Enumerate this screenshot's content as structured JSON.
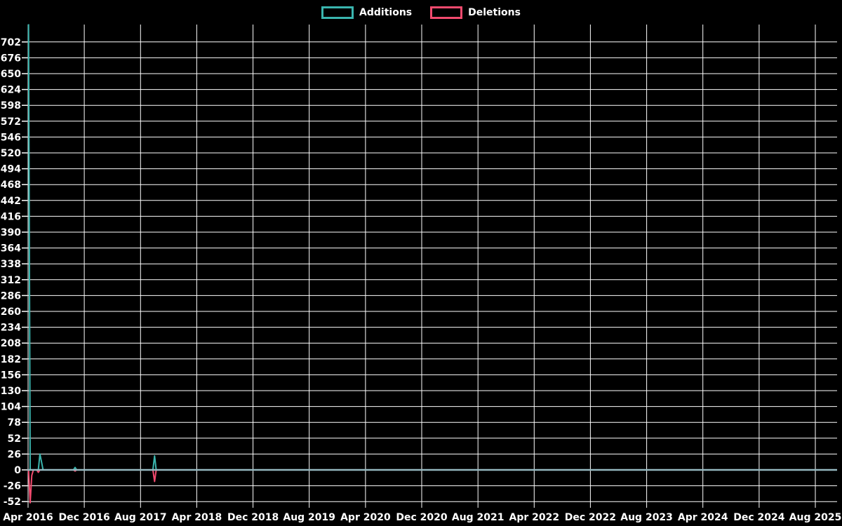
{
  "page": {
    "background": "#000000"
  },
  "legend": {
    "items": [
      {
        "label": "Additions",
        "color": "#3ab5ae"
      },
      {
        "label": "Deletions",
        "color": "#f24a6e"
      }
    ]
  },
  "chart_data": {
    "type": "line",
    "title": "",
    "xlabel": "",
    "ylabel": "",
    "x_axis": {
      "start": "2016-04-01",
      "tick_interval_months": 8,
      "tick_labels": [
        "Apr 2016",
        "Dec 2016",
        "Aug 2017",
        "Apr 2018",
        "Dec 2018",
        "Aug 2019",
        "Apr 2020",
        "Dec 2020",
        "Aug 2021",
        "Apr 2022",
        "Dec 2022",
        "Aug 2023",
        "Apr 2024",
        "Dec 2024",
        "Aug 2025"
      ]
    },
    "y_axis": {
      "min": -54,
      "max": 731,
      "tick_step": 26,
      "tick_values": [
        702,
        676,
        650,
        624,
        598,
        572,
        546,
        520,
        494,
        468,
        442,
        416,
        390,
        364,
        338,
        312,
        286,
        260,
        234,
        208,
        182,
        156,
        130,
        104,
        78,
        52,
        26,
        0,
        -26,
        -52
      ]
    },
    "series": [
      {
        "name": "Additions",
        "color": "#3ab5ae",
        "points": [
          [
            "2016-04-03",
            731
          ],
          [
            "2016-04-10",
            0
          ],
          [
            "2016-05-15",
            0
          ],
          [
            "2016-05-22",
            26
          ],
          [
            "2016-05-29",
            13
          ],
          [
            "2016-06-05",
            0
          ],
          [
            "2016-10-15",
            0
          ],
          [
            "2016-10-22",
            4
          ],
          [
            "2016-10-29",
            0
          ],
          [
            "2017-09-24",
            0
          ],
          [
            "2017-10-01",
            23
          ],
          [
            "2017-10-08",
            0
          ],
          [
            "2025-11-02",
            0
          ]
        ]
      },
      {
        "name": "Deletions",
        "color": "#f24a6e",
        "points": [
          [
            "2016-04-03",
            0
          ],
          [
            "2016-04-10",
            -54
          ],
          [
            "2016-04-17",
            -9
          ],
          [
            "2016-04-24",
            0
          ],
          [
            "2016-05-08",
            0
          ],
          [
            "2016-05-15",
            -4
          ],
          [
            "2016-05-22",
            0
          ],
          [
            "2016-10-15",
            0
          ],
          [
            "2016-10-22",
            -2
          ],
          [
            "2016-10-29",
            0
          ],
          [
            "2017-09-24",
            0
          ],
          [
            "2017-10-01",
            -19
          ],
          [
            "2017-10-08",
            0
          ],
          [
            "2025-11-02",
            0
          ]
        ]
      }
    ],
    "legend_position": "top-center",
    "grid": true,
    "styles": {
      "background": "#000000",
      "grid_color": "#ffffff",
      "text_color": "#ffffff",
      "zero_line_color": "#95b8c0"
    }
  }
}
